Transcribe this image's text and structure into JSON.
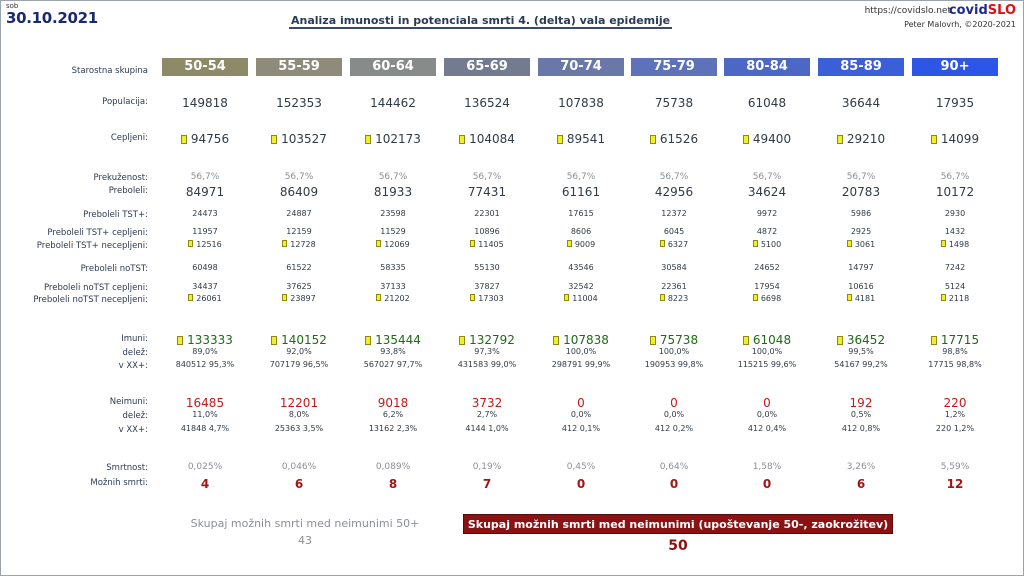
{
  "header": {
    "day": "sob",
    "date": "30.10.2021",
    "title": "Analiza imunosti in potenciala smrti 4. (delta) vala epidemije",
    "url": "https://covidslo.net",
    "brand_a": "covid",
    "brand_b": "SLO",
    "author": "Peter Malovrh, ©2020-2021"
  },
  "labels": {
    "group": "Starostna skupina",
    "population": "Populacija:",
    "vaccinated": "Cepljeni:",
    "recovered_share": "Prekuženost:",
    "recovered": "Preboleli:",
    "tst_pos": "Preboleli TST+:",
    "tst_pos_vax": "Preboleli TST+ cepljeni:",
    "tst_pos_unvax": "Preboleli TST+ necepljeni:",
    "no_tst": "Preboleli noTST:",
    "no_tst_vax": "Preboleli noTST cepljeni:",
    "no_tst_unvax": "Preboleli noTST necepljeni:",
    "immune": "Imuni:",
    "share": "delež:",
    "xx": "v XX+:",
    "non_immune": "Neimuni:",
    "share2": "delež:",
    "xx2": "v XX+:",
    "mortality": "Smrtnost:",
    "possible_deaths": "Možnih smrti:"
  },
  "groups": [
    {
      "name": "50-54",
      "color": "#8d8a67",
      "population": "149818",
      "vaccinated": "94756",
      "recovered_share": "56,7%",
      "recovered": "84971",
      "tst_pos": "24473",
      "tst_pos_vax": "11957",
      "tst_pos_unvax": "12516",
      "no_tst": "60498",
      "no_tst_vax": "34437",
      "no_tst_unvax": "26061",
      "immune": "133333",
      "immune_share": "89,0%",
      "immune_xx": "840512 95,3%",
      "non_immune": "16485",
      "non_share": "11,0%",
      "non_xx": "41848 4,7%",
      "mortality": "0,025%",
      "deaths": "4"
    },
    {
      "name": "55-59",
      "color": "#8e8b7b",
      "population": "152353",
      "vaccinated": "103527",
      "recovered_share": "56,7%",
      "recovered": "86409",
      "tst_pos": "24887",
      "tst_pos_vax": "12159",
      "tst_pos_unvax": "12728",
      "no_tst": "61522",
      "no_tst_vax": "37625",
      "no_tst_unvax": "23897",
      "immune": "140152",
      "immune_share": "92,0%",
      "immune_xx": "707179 96,5%",
      "non_immune": "12201",
      "non_share": "8,0%",
      "non_xx": "25363 3,5%",
      "mortality": "0,046%",
      "deaths": "6"
    },
    {
      "name": "60-64",
      "color": "#878b89",
      "population": "144462",
      "vaccinated": "102173",
      "recovered_share": "56,7%",
      "recovered": "81933",
      "tst_pos": "23598",
      "tst_pos_vax": "11529",
      "tst_pos_unvax": "12069",
      "no_tst": "58335",
      "no_tst_vax": "37133",
      "no_tst_unvax": "21202",
      "immune": "135444",
      "immune_share": "93,8%",
      "immune_xx": "567027 97,7%",
      "non_immune": "9018",
      "non_share": "6,2%",
      "non_xx": "13162 2,3%",
      "mortality": "0,089%",
      "deaths": "8"
    },
    {
      "name": "65-69",
      "color": "#737b90",
      "population": "136524",
      "vaccinated": "104084",
      "recovered_share": "56,7%",
      "recovered": "77431",
      "tst_pos": "22301",
      "tst_pos_vax": "10896",
      "tst_pos_unvax": "11405",
      "no_tst": "55130",
      "no_tst_vax": "37827",
      "no_tst_unvax": "17303",
      "immune": "132792",
      "immune_share": "97,3%",
      "immune_xx": "431583 99,0%",
      "non_immune": "3732",
      "non_share": "2,7%",
      "non_xx": "4144 1,0%",
      "mortality": "0,19%",
      "deaths": "7"
    },
    {
      "name": "70-74",
      "color": "#6a78a8",
      "population": "107838",
      "vaccinated": "89541",
      "recovered_share": "56,7%",
      "recovered": "61161",
      "tst_pos": "17615",
      "tst_pos_vax": "8606",
      "tst_pos_unvax": "9009",
      "no_tst": "43546",
      "no_tst_vax": "32542",
      "no_tst_unvax": "11004",
      "immune": "107838",
      "immune_share": "100,0%",
      "immune_xx": "298791 99,9%",
      "non_immune": "0",
      "non_share": "0,0%",
      "non_xx": "412 0,1%",
      "mortality": "0,45%",
      "deaths": "0"
    },
    {
      "name": "75-79",
      "color": "#5d72b8",
      "population": "75738",
      "vaccinated": "61526",
      "recovered_share": "56,7%",
      "recovered": "42956",
      "tst_pos": "12372",
      "tst_pos_vax": "6045",
      "tst_pos_unvax": "6327",
      "no_tst": "30584",
      "no_tst_vax": "22361",
      "no_tst_unvax": "8223",
      "immune": "75738",
      "immune_share": "100,0%",
      "immune_xx": "190953 99,8%",
      "non_immune": "0",
      "non_share": "0,0%",
      "non_xx": "412 0,2%",
      "mortality": "0,64%",
      "deaths": "0"
    },
    {
      "name": "80-84",
      "color": "#4d68c4",
      "population": "61048",
      "vaccinated": "49400",
      "recovered_share": "56,7%",
      "recovered": "34624",
      "tst_pos": "9972",
      "tst_pos_vax": "4872",
      "tst_pos_unvax": "5100",
      "no_tst": "24652",
      "no_tst_vax": "17954",
      "no_tst_unvax": "6698",
      "immune": "61048",
      "immune_share": "100,0%",
      "immune_xx": "115215 99,6%",
      "non_immune": "0",
      "non_share": "0,0%",
      "non_xx": "412 0,4%",
      "mortality": "1,58%",
      "deaths": "0"
    },
    {
      "name": "85-89",
      "color": "#3b5fd6",
      "population": "36644",
      "vaccinated": "29210",
      "recovered_share": "56,7%",
      "recovered": "20783",
      "tst_pos": "5986",
      "tst_pos_vax": "2925",
      "tst_pos_unvax": "3061",
      "no_tst": "14797",
      "no_tst_vax": "10616",
      "no_tst_unvax": "4181",
      "immune": "36452",
      "immune_share": "99,5%",
      "immune_xx": "54167 99,2%",
      "non_immune": "192",
      "non_share": "0,5%",
      "non_xx": "412 0,8%",
      "mortality": "3,26%",
      "deaths": "6"
    },
    {
      "name": "90+",
      "color": "#2e56e6",
      "population": "17935",
      "vaccinated": "14099",
      "recovered_share": "56,7%",
      "recovered": "10172",
      "tst_pos": "2930",
      "tst_pos_vax": "1432",
      "tst_pos_unvax": "1498",
      "no_tst": "7242",
      "no_tst_vax": "5124",
      "no_tst_unvax": "2118",
      "immune": "17715",
      "immune_share": "98,8%",
      "immune_xx": "17715 98,8%",
      "non_immune": "220",
      "non_share": "1,2%",
      "non_xx": "220 1,2%",
      "mortality": "5,59%",
      "deaths": "12"
    }
  ],
  "summary": {
    "left_label": "Skupaj možnih smrti med neimunimi 50+",
    "left_value": "43",
    "right_label": "Skupaj možnih smrti med neimunimi (upoštevanje 50-, zaokrožitev)",
    "right_value": "50"
  }
}
